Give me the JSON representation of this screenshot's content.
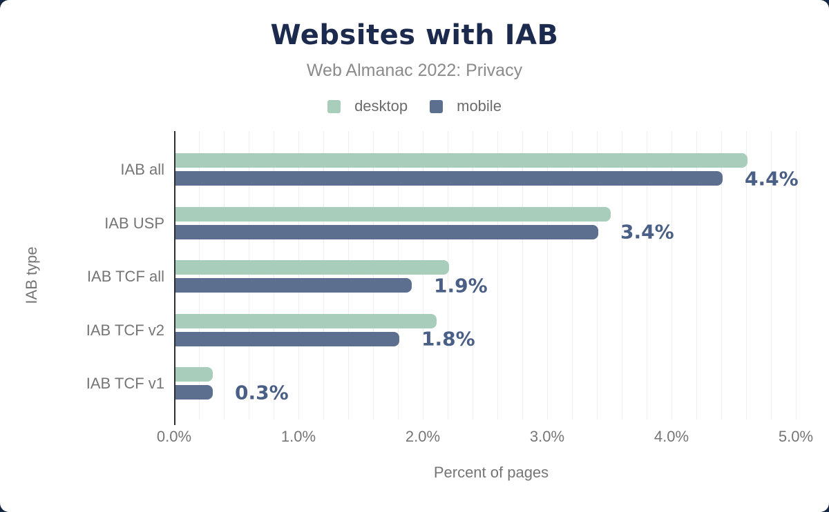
{
  "page": {
    "background_color": "#152843",
    "card_color": "#ffffff"
  },
  "chart_data": {
    "type": "bar",
    "orientation": "horizontal",
    "title": "Websites with IAB",
    "subtitle": "Web Almanac 2022: Privacy",
    "xlabel": "Percent of pages",
    "ylabel": "IAB type",
    "categories": [
      "IAB all",
      "IAB USP",
      "IAB TCF all",
      "IAB TCF v2",
      "IAB TCF v1"
    ],
    "series": [
      {
        "name": "desktop",
        "color": "#a9cdbb",
        "values": [
          4.6,
          3.5,
          2.2,
          2.1,
          0.3
        ]
      },
      {
        "name": "mobile",
        "color": "#5c6f8e",
        "values": [
          4.4,
          3.4,
          1.9,
          1.8,
          0.3
        ]
      }
    ],
    "annotations": {
      "series": "mobile",
      "labels": [
        "4.4%",
        "3.4%",
        "1.9%",
        "1.8%",
        "0.3%"
      ],
      "color": "#495f85"
    },
    "x_ticks": [
      "0.0%",
      "1.0%",
      "2.0%",
      "3.0%",
      "4.0%",
      "5.0%"
    ],
    "xlim": [
      0,
      5
    ],
    "grid": {
      "minor_step_pct": 0.2,
      "color": "#eeeeee"
    },
    "axis_color": "#2e2e2e",
    "text_colors": {
      "title": "#1c2a4e",
      "subtitle": "#8b8b8b",
      "axis_labels": "#757575",
      "legend": "#6b6b6b"
    }
  }
}
